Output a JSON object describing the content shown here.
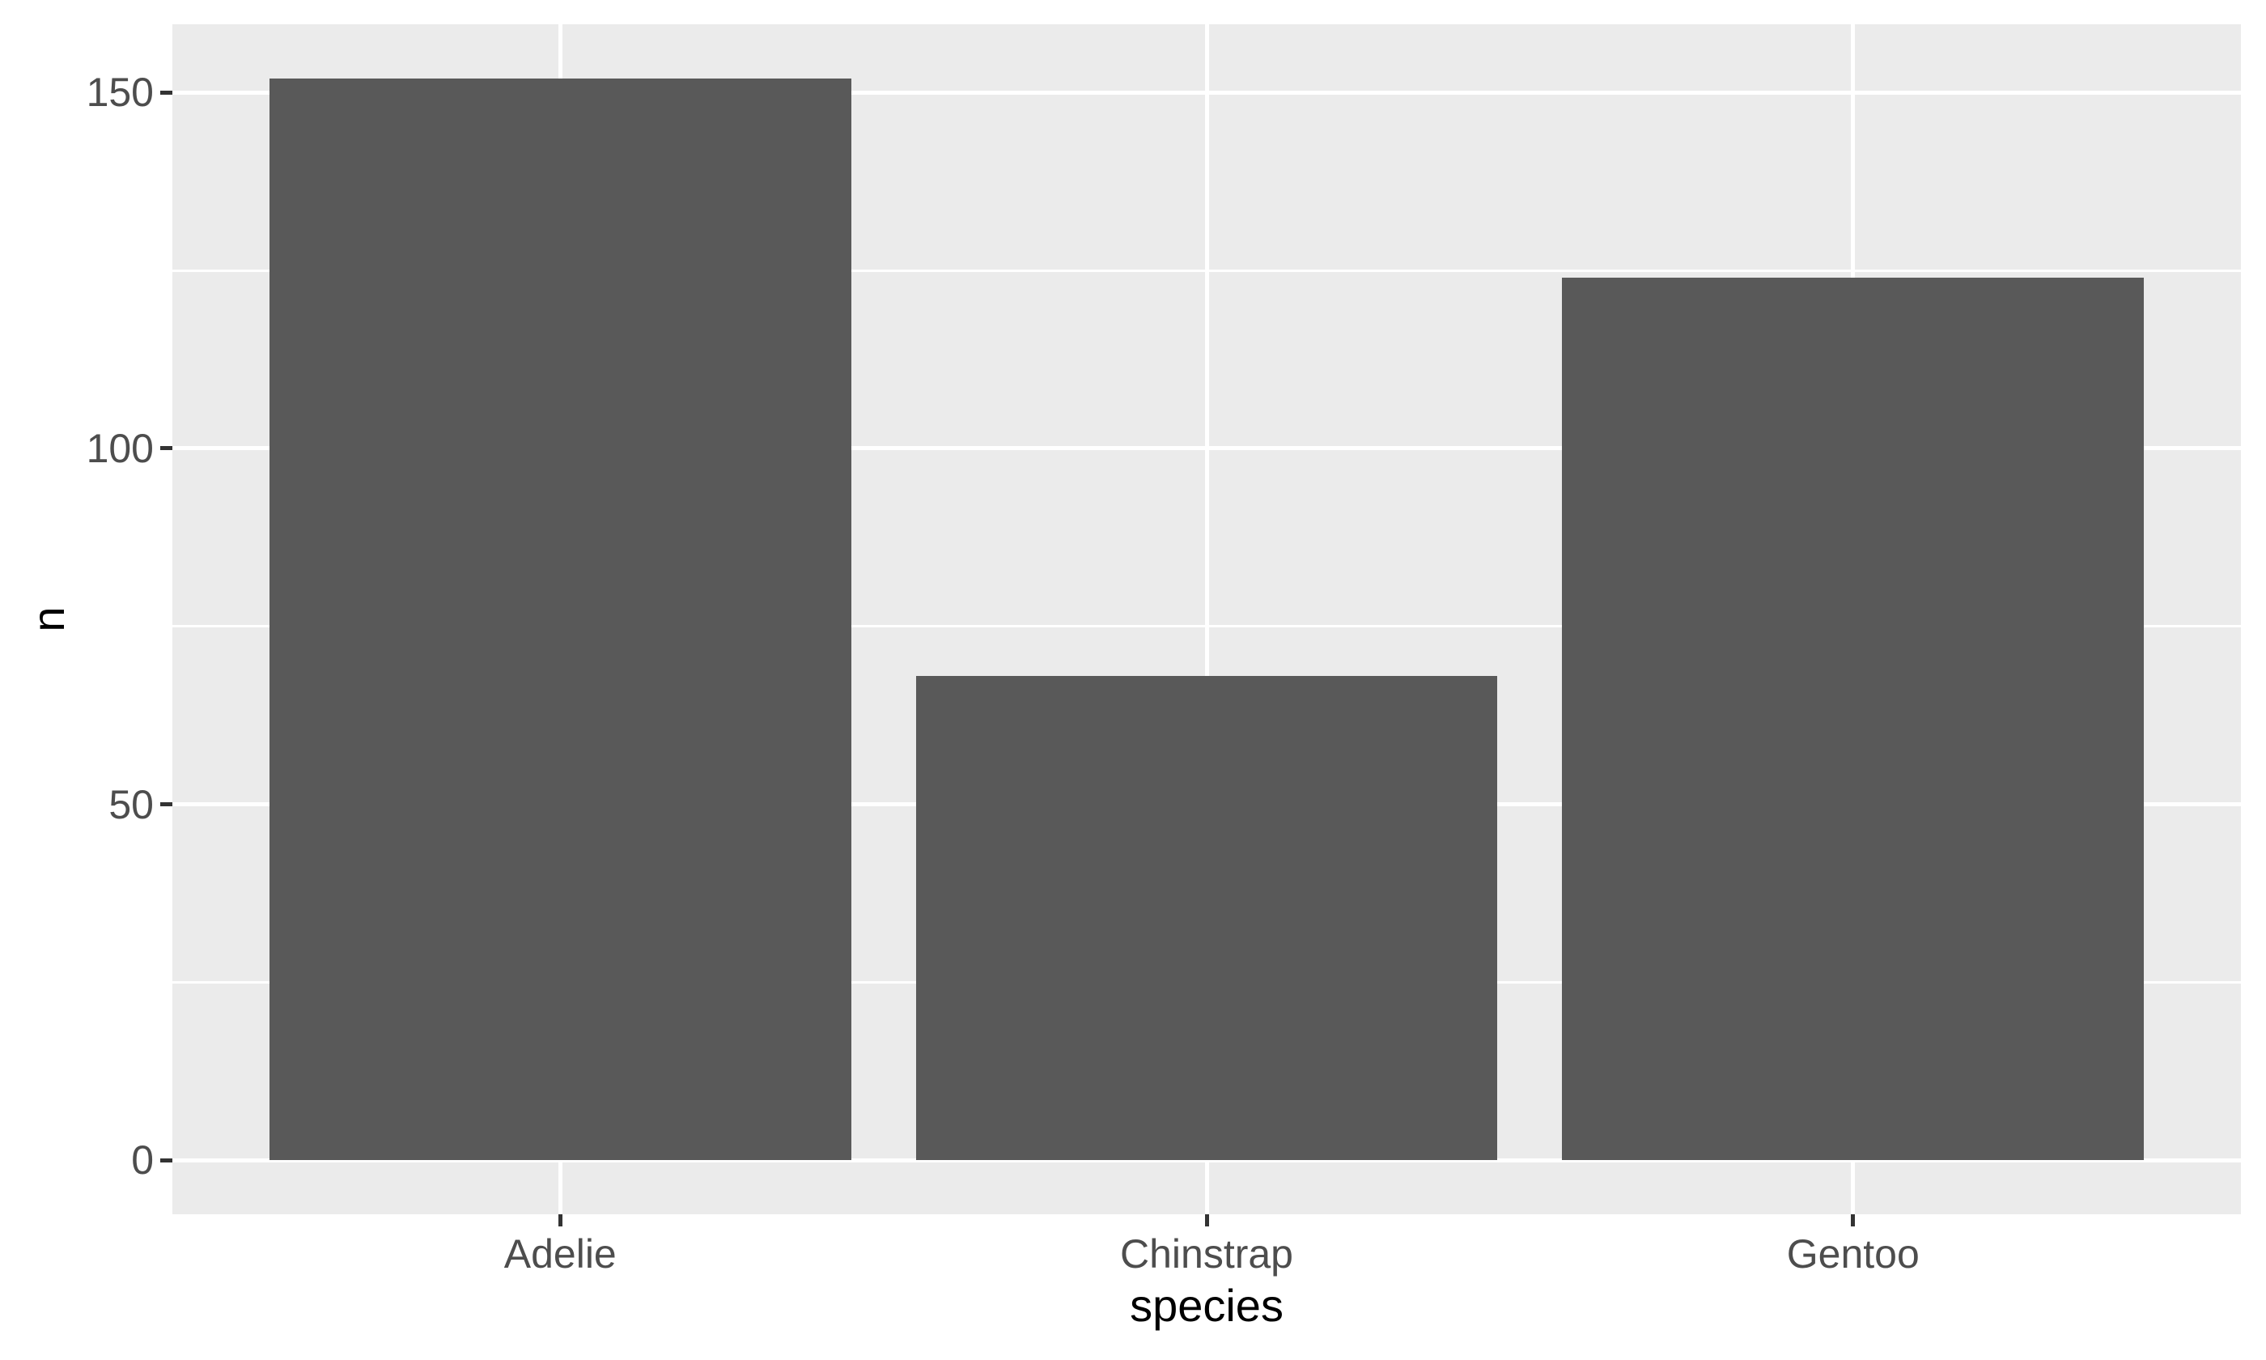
{
  "chart_data": {
    "type": "bar",
    "title": "",
    "xlabel": "species",
    "ylabel": "n",
    "categories": [
      "Adelie",
      "Chinstrap",
      "Gentoo"
    ],
    "values": [
      152,
      68,
      124
    ],
    "y_ticks": [
      0,
      50,
      100,
      150
    ],
    "y_minor_ticks": [
      25,
      75,
      125
    ],
    "ylim": [
      -7.6,
      159.6
    ],
    "xlim_units": [
      0.4,
      3.6
    ],
    "bar_width_units": 0.9,
    "grid": "white major and minor horizontal lines, white major vertical lines at category centers, on grey panel",
    "legend": "none",
    "colors": {
      "bar_fill": "#595959",
      "panel_background": "#EBEBEB",
      "grid_line": "#FFFFFF",
      "axis_text": "#4D4D4D",
      "axis_tick_marks": "#333333",
      "axis_title": "#000000",
      "plot_background": "#FFFFFF"
    }
  }
}
